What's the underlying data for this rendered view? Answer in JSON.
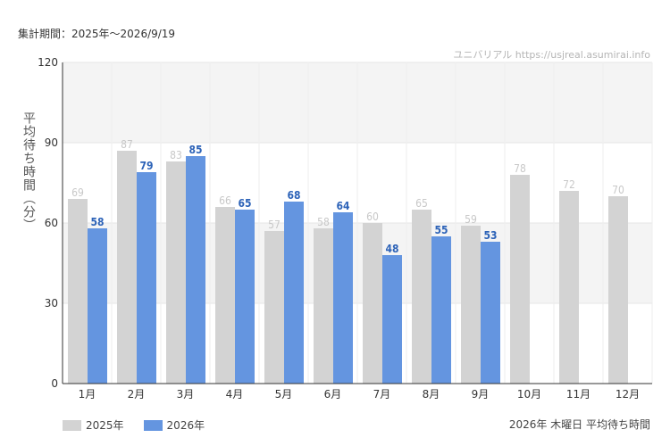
{
  "header": {
    "period": "集計期間：2025年～2026/9/19",
    "credit": "ユニバリアル  https://usjreal.asumirai.info"
  },
  "footer": {
    "caption": "2026年 木曜日 平均待ち時間"
  },
  "colors": {
    "series_2025": "#d3d3d3",
    "series_2026": "#6495e0",
    "label_2025": "#c8c8c8",
    "label_2026": "#2d63b8",
    "band": "#f4f4f4"
  },
  "chart_data": {
    "type": "bar",
    "title": "",
    "xlabel": "",
    "ylabel": "平均待ち時間（分）",
    "ylim": [
      0,
      120
    ],
    "yticks": [
      0,
      30,
      60,
      90,
      120
    ],
    "categories": [
      "1月",
      "2月",
      "3月",
      "4月",
      "5月",
      "6月",
      "7月",
      "8月",
      "9月",
      "10月",
      "11月",
      "12月"
    ],
    "series": [
      {
        "name": "2025年",
        "values": [
          69,
          87,
          83,
          66,
          57,
          58,
          60,
          65,
          59,
          78,
          72,
          70
        ]
      },
      {
        "name": "2026年",
        "values": [
          58,
          79,
          85,
          65,
          68,
          64,
          48,
          55,
          53,
          null,
          null,
          null
        ]
      }
    ],
    "legend_position": "bottom-left",
    "grid": true
  }
}
